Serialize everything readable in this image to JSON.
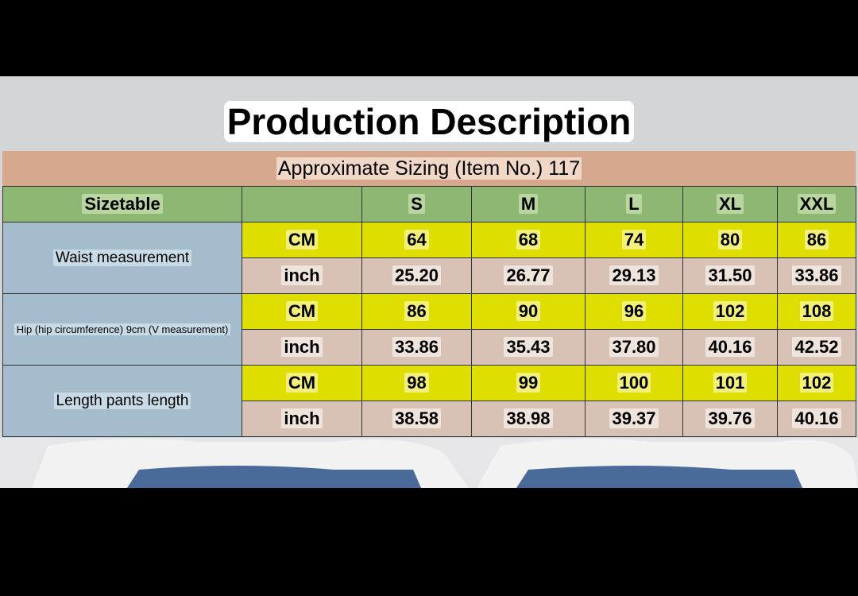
{
  "title": "Production Description",
  "subtitle": "Approximate Sizing (Item No.) 117",
  "table": {
    "corner": "Sizetable",
    "sizes": [
      "S",
      "M",
      "L",
      "XL",
      "XXL"
    ],
    "groups": [
      {
        "label": "Waist measurement",
        "rows": [
          {
            "unit": "CM",
            "values": [
              "64",
              "68",
              "74",
              "80",
              "86"
            ]
          },
          {
            "unit": "inch",
            "values": [
              "25.20",
              "26.77",
              "29.13",
              "31.50",
              "33.86"
            ]
          }
        ]
      },
      {
        "label": "Hip (hip circumference) 9cm (V measurement)",
        "rows": [
          {
            "unit": "CM",
            "values": [
              "86",
              "90",
              "96",
              "102",
              "108"
            ]
          },
          {
            "unit": "inch",
            "values": [
              "33.86",
              "35.43",
              "37.80",
              "40.16",
              "42.52"
            ]
          }
        ]
      },
      {
        "label": "Length pants length",
        "rows": [
          {
            "unit": "CM",
            "values": [
              "98",
              "99",
              "100",
              "101",
              "102"
            ]
          },
          {
            "unit": "inch",
            "values": [
              "38.58",
              "38.98",
              "39.37",
              "39.76",
              "40.16"
            ]
          }
        ]
      }
    ]
  }
}
